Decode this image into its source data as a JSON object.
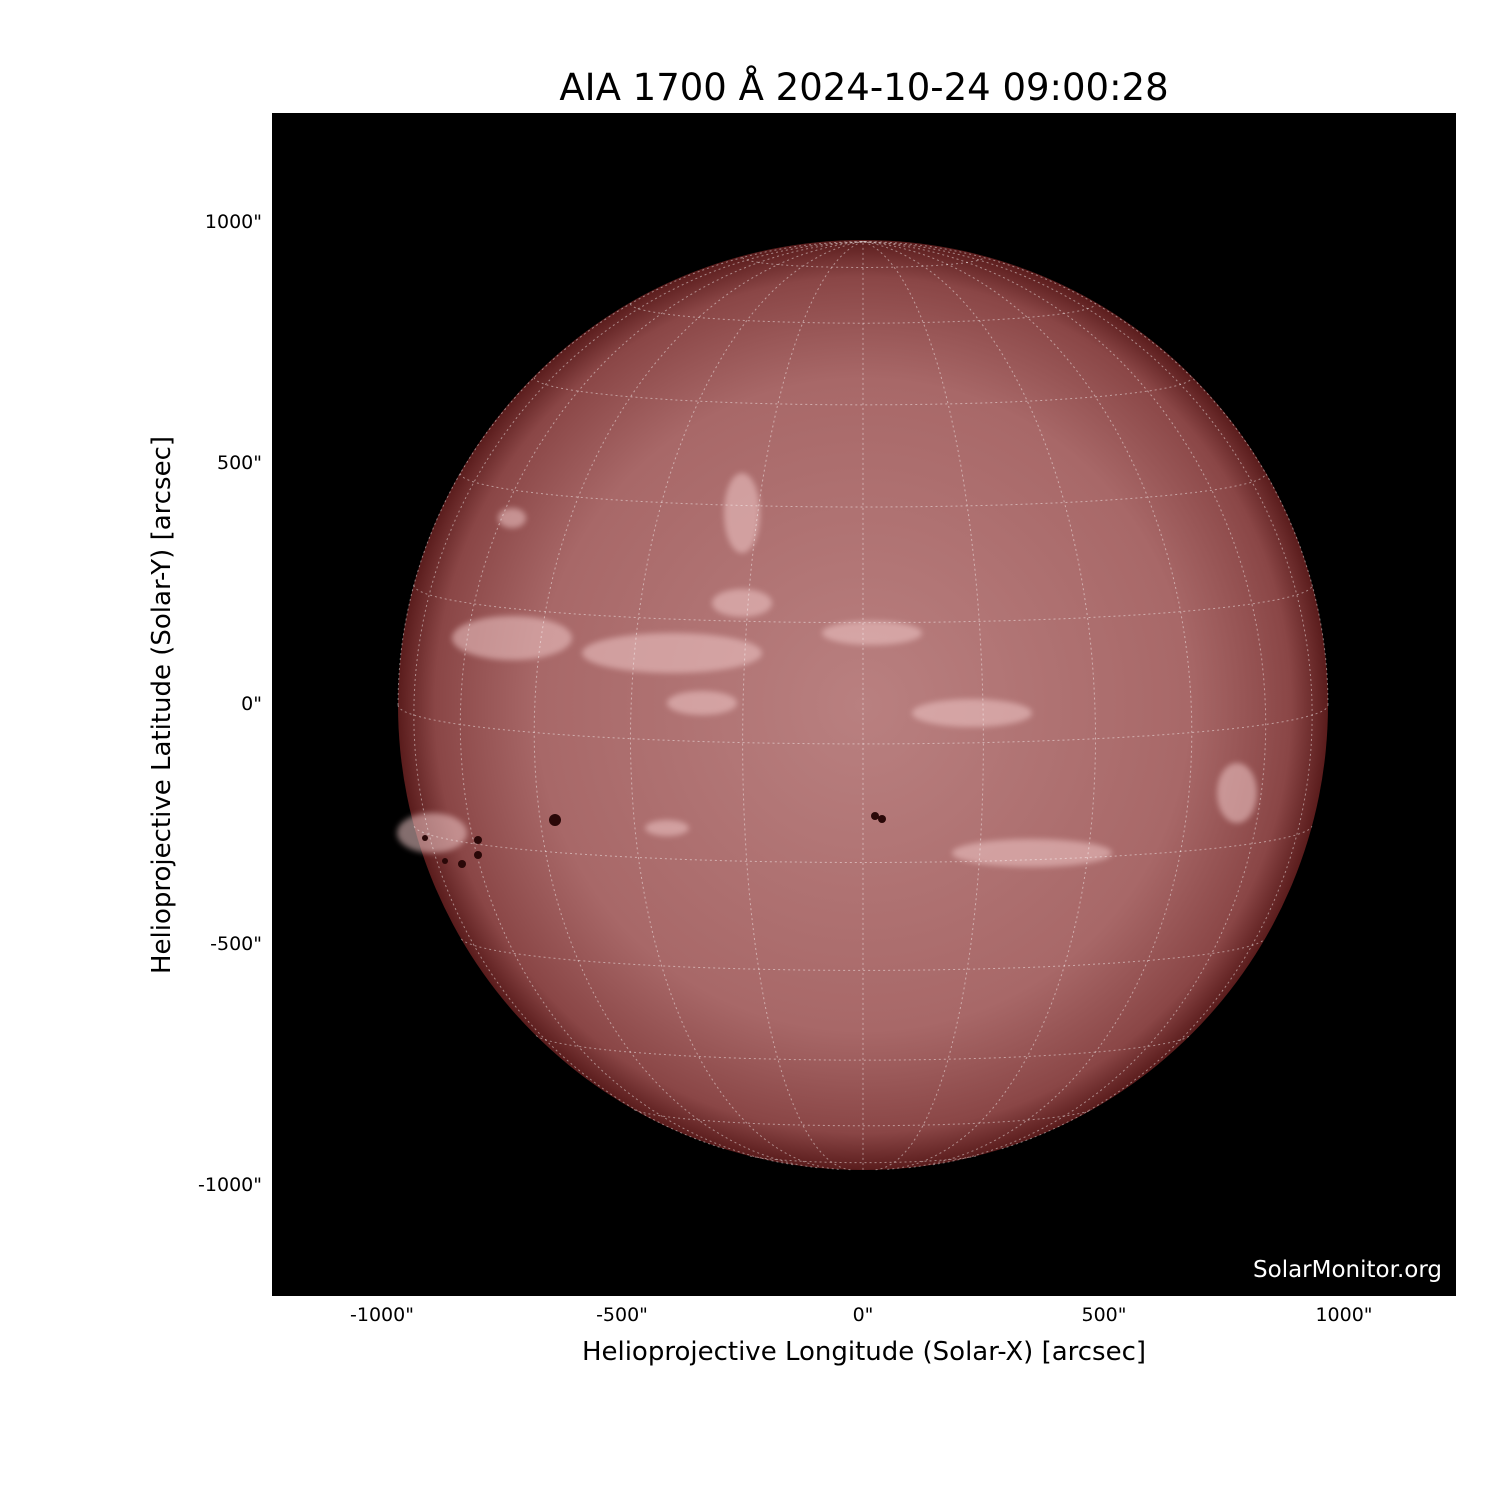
{
  "title": "AIA 1700 Å 2024-10-24 09:00:28",
  "xlabel": "Helioprojective Longitude (Solar-X) [arcsec]",
  "ylabel": "Helioprojective Latitude (Solar-Y) [arcsec]",
  "x_ticks": [
    "-1000\"",
    "-500\"",
    "0\"",
    "500\"",
    "1000\""
  ],
  "y_ticks": [
    "1000\"",
    "500\"",
    "0\"",
    "-500\"",
    "-1000\""
  ],
  "watermark": "SolarMonitor.org",
  "colors": {
    "background": "#000000",
    "disk_center": "#b98080",
    "disk_limb": "#5a1c1c",
    "grid": "#ffffff"
  }
}
